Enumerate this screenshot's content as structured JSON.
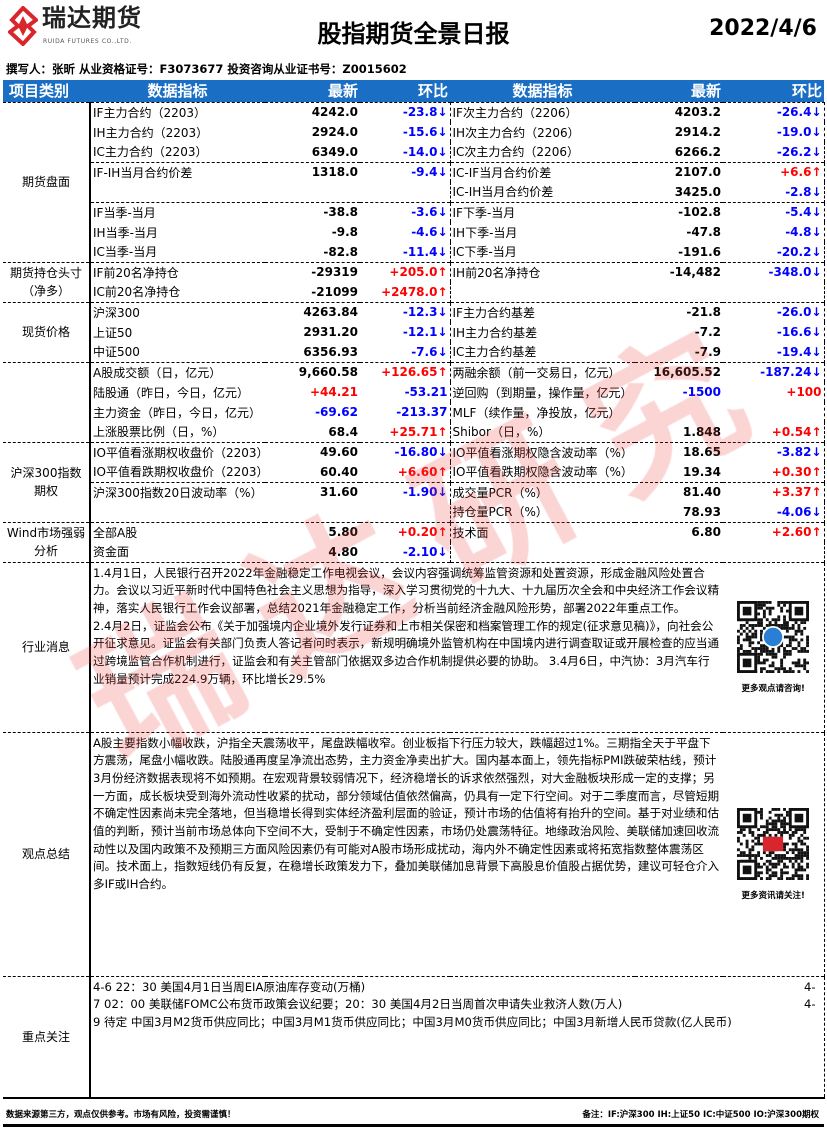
{
  "header": {
    "logo_cn": "瑞达期货",
    "logo_en": "RUIDA FUTURES CO.,LTD.",
    "title": "股指期货全景日报",
    "date": "2022/4/6",
    "author_line": "撰写人：张昕   从业资格证号：F3073677   投资咨询从业证书号：Z0015602"
  },
  "watermark": "瑞达研究",
  "columns": [
    "项目类别",
    "数据指标",
    "最新",
    "环比",
    "数据指标",
    "最新",
    "环比"
  ],
  "sections": [
    {
      "category": "期货盘面",
      "rows": [
        {
          "cells": [
            [
              "IF主力合约（2203）",
              "black"
            ],
            [
              "4242.0",
              "black"
            ],
            [
              "-23.8↓",
              "blue"
            ],
            [
              "IF次主力合约（2206）",
              "black"
            ],
            [
              "4203.2",
              "black"
            ],
            [
              "-26.4↓",
              "blue"
            ]
          ]
        },
        {
          "cells": [
            [
              "IH主力合约（2203）",
              "black"
            ],
            [
              "2924.0",
              "black"
            ],
            [
              "-15.6↓",
              "blue"
            ],
            [
              "IH次主力合约（2206）",
              "black"
            ],
            [
              "2914.2",
              "black"
            ],
            [
              "-19.0↓",
              "blue"
            ]
          ]
        },
        {
          "cells": [
            [
              "IC主力合约（2203）",
              "black"
            ],
            [
              "6349.0",
              "black"
            ],
            [
              "-14.0↓",
              "blue"
            ],
            [
              "IC次主力合约（2206）",
              "black"
            ],
            [
              "6266.2",
              "black"
            ],
            [
              "-26.2↓",
              "blue"
            ]
          ]
        },
        {
          "sep": true,
          "cells": [
            [
              "IF-IH当月合约价差",
              "black"
            ],
            [
              "1318.0",
              "black"
            ],
            [
              "-9.4↓",
              "blue"
            ],
            [
              "IC-IF当月合约价差",
              "black"
            ],
            [
              "2107.0",
              "black"
            ],
            [
              "+6.6↑",
              "red"
            ]
          ]
        },
        {
          "cells": [
            [
              "",
              "black"
            ],
            [
              "",
              "black"
            ],
            [
              "",
              "black"
            ],
            [
              "IC-IH当月合约价差",
              "black"
            ],
            [
              "3425.0",
              "black"
            ],
            [
              "-2.8↓",
              "blue"
            ]
          ]
        },
        {
          "sep": true,
          "cells": [
            [
              "IF当季-当月",
              "black"
            ],
            [
              "-38.8",
              "black"
            ],
            [
              "-3.6↓",
              "blue"
            ],
            [
              "IF下季-当月",
              "black"
            ],
            [
              "-102.8",
              "black"
            ],
            [
              "-5.4↓",
              "blue"
            ]
          ]
        },
        {
          "cells": [
            [
              "IH当季-当月",
              "black"
            ],
            [
              "-9.8",
              "black"
            ],
            [
              "-4.6↓",
              "blue"
            ],
            [
              "IH下季-当月",
              "black"
            ],
            [
              "-47.8",
              "black"
            ],
            [
              "-4.8↓",
              "blue"
            ]
          ]
        },
        {
          "cells": [
            [
              "IC当季-当月",
              "black"
            ],
            [
              "-82.8",
              "black"
            ],
            [
              "-11.4↓",
              "blue"
            ],
            [
              "IC下季-当月",
              "black"
            ],
            [
              "-191.6",
              "black"
            ],
            [
              "-20.2↓",
              "blue"
            ]
          ]
        }
      ]
    },
    {
      "category": "期货持仓头寸（净多）",
      "rows": [
        {
          "cells": [
            [
              "IF前20名净持仓",
              "black"
            ],
            [
              "-29319",
              "black"
            ],
            [
              "+205.0↑",
              "red"
            ],
            [
              "IH前20名净持仓",
              "black"
            ],
            [
              "-14,482",
              "black"
            ],
            [
              "-348.0↓",
              "blue"
            ]
          ]
        },
        {
          "cells": [
            [
              "IC前20名净持仓",
              "black"
            ],
            [
              "-21099",
              "black"
            ],
            [
              "+2478.0↑",
              "red"
            ],
            [
              "",
              "black"
            ],
            [
              "",
              "black"
            ],
            [
              "",
              "black"
            ]
          ]
        }
      ]
    },
    {
      "category": "现货价格",
      "rows": [
        {
          "cells": [
            [
              "沪深300",
              "black"
            ],
            [
              "4263.84",
              "black"
            ],
            [
              "-12.3↓",
              "blue"
            ],
            [
              "IF主力合约基差",
              "black"
            ],
            [
              "-21.8",
              "black"
            ],
            [
              "-26.0↓",
              "blue"
            ]
          ]
        },
        {
          "cells": [
            [
              "上证50",
              "black"
            ],
            [
              "2931.20",
              "black"
            ],
            [
              "-12.1↓",
              "blue"
            ],
            [
              "IH主力合约基差",
              "black"
            ],
            [
              "-7.2",
              "black"
            ],
            [
              "-16.6↓",
              "blue"
            ]
          ]
        },
        {
          "cells": [
            [
              "中证500",
              "black"
            ],
            [
              "6356.93",
              "black"
            ],
            [
              "-7.6↓",
              "blue"
            ],
            [
              "IC主力合约基差",
              "black"
            ],
            [
              "-7.9",
              "black"
            ],
            [
              "-19.4↓",
              "blue"
            ]
          ]
        }
      ]
    },
    {
      "category": "",
      "rows": [
        {
          "cells": [
            [
              "A股成交额（日，亿元）",
              "black"
            ],
            [
              "9,660.58",
              "black"
            ],
            [
              "+126.65↑",
              "red"
            ],
            [
              "两融余额（前一交易日，亿元）",
              "black"
            ],
            [
              "16,605.52",
              "black"
            ],
            [
              "-187.24↓",
              "blue"
            ]
          ]
        },
        {
          "cells": [
            [
              "陆股通（昨日，今日，亿元）",
              "black"
            ],
            [
              "+44.21",
              "red"
            ],
            [
              "-53.21",
              "blue"
            ],
            [
              "逆回购（到期量，操作量，亿元）",
              "black"
            ],
            [
              "-1500",
              "blue"
            ],
            [
              "+100",
              "red"
            ]
          ]
        },
        {
          "cells": [
            [
              "主力资金（昨日，今日，亿元）",
              "black"
            ],
            [
              "-69.62",
              "blue"
            ],
            [
              "-213.37",
              "blue"
            ],
            [
              "MLF（续作量，净投放，亿元）",
              "black"
            ],
            [
              "",
              "black"
            ],
            [
              "",
              "black"
            ]
          ]
        },
        {
          "cells": [
            [
              "上涨股票比例（日，%）",
              "black"
            ],
            [
              "68.4",
              "black"
            ],
            [
              "+25.71↑",
              "red"
            ],
            [
              "Shibor（日，%）",
              "black"
            ],
            [
              "1.848",
              "black"
            ],
            [
              "+0.54↑",
              "red"
            ]
          ]
        }
      ]
    },
    {
      "category": "沪深300指数期权",
      "rows": [
        {
          "cells": [
            [
              "IO平值看涨期权收盘价（2203）",
              "black"
            ],
            [
              "49.60",
              "black"
            ],
            [
              "-16.80↓",
              "blue"
            ],
            [
              "IO平值看涨期权隐含波动率（%）",
              "black"
            ],
            [
              "18.65",
              "black"
            ],
            [
              "-3.82↓",
              "blue"
            ]
          ]
        },
        {
          "cells": [
            [
              "IO平值看跌期权收盘价（2203）",
              "black"
            ],
            [
              "60.40",
              "black"
            ],
            [
              "+6.60↑",
              "red"
            ],
            [
              "IO平值看跌期权隐含波动率（%）",
              "black"
            ],
            [
              "19.34",
              "black"
            ],
            [
              "+0.30↑",
              "red"
            ]
          ]
        },
        {
          "sep": true,
          "cells": [
            [
              "沪深300指数20日波动率（%）",
              "black"
            ],
            [
              "31.60",
              "black"
            ],
            [
              "-1.90↓",
              "blue"
            ],
            [
              "成交量PCR（%）",
              "black"
            ],
            [
              "81.40",
              "black"
            ],
            [
              "+3.37↑",
              "red"
            ]
          ]
        },
        {
          "cells": [
            [
              "",
              "black"
            ],
            [
              "",
              "black"
            ],
            [
              "",
              "black"
            ],
            [
              "持仓量PCR（%）",
              "black"
            ],
            [
              "78.93",
              "black"
            ],
            [
              "-4.06↓",
              "blue"
            ]
          ]
        }
      ]
    },
    {
      "category": "Wind市场强弱分析",
      "rows": [
        {
          "cells": [
            [
              "全部A股",
              "black"
            ],
            [
              "5.80",
              "black"
            ],
            [
              "+0.20↑",
              "red"
            ],
            [
              "技术面",
              "black"
            ],
            [
              "6.80",
              "black"
            ],
            [
              "+2.60↑",
              "red"
            ]
          ]
        },
        {
          "cells": [
            [
              "资金面",
              "black"
            ],
            [
              "4.80",
              "black"
            ],
            [
              "-2.10↓",
              "blue"
            ],
            [
              "",
              "black"
            ],
            [
              "",
              "black"
            ],
            [
              "",
              "black"
            ]
          ]
        }
      ]
    }
  ],
  "news": {
    "label": "行业消息",
    "text": "1.4月1日，人民银行召开2022年金融稳定工作电视会议，会议内容强调统筹监管资源和处置资源，形成金融风险处置合力。会议以习近平新时代中国特色社会主义思想为指导，深入学习贯彻党的十九大、十九届历次全会和中央经济工作会议精神，落实人民银行工作会议部署，总结2021年金融稳定工作，分析当前经济金融风险形势，部署2022年重点工作。　　　　　2.4月2日，证监会公布《关于加强境内企业境外发行证券和上市相关保密和档案管理工作的规定(征求意见稿)》，向社会公开征求意见。证监会有关部门负责人答记者问时表示，新规明确境外监管机构在中国境内进行调查取证或开展检查的应当通过跨境监管合作机制进行，证监会和有关主管部门依据双多边合作机制提供必要的协助。\n3.4月6日，中汽协：3月汽车行业销量预计完成224.9万辆，环比增长29.5%",
    "qr_caption": "更多观点请咨询!"
  },
  "view": {
    "label": "观点总结",
    "text": "A股主要指数小幅收跌，沪指全天震荡收平，尾盘跌幅收窄。创业板指下行压力较大，跌幅超过1%。三期指全天于平盘下方震荡，尾盘小幅收跌。陆股通再度呈净流出态势，主力资金净卖出扩大。国内基本面上，领先指标PMI跌破荣枯线，预计3月份经济数据表现将不如预期。在宏观背景较弱情况下，经济稳增长的诉求依然强烈，对大金融板块形成一定的支撑；另一方面，成长板块受到海外流动性收紧的扰动，部分领域估值依然偏高，仍具有一定下行空间。对于二季度而言，尽管短期不确定性因素尚未完全落地，但当稳增长得到实体经济盈利层面的验证，预计市场的估值将有抬升的空间。基于对业绩和估值的判断，预计当前市场总体向下空间不大，受制于不确定性因素，市场仍处震荡特征。地缘政治风险、美联储加速回收流动性以及国内政策不及预期三方面风险因素仍有可能对A股市场形成扰动，海内外不确定性因素或将拓宽指数整体震荡区间。技术面上，指数短线仍有反复，在稳增长政策发力下，叠加美联储加息背景下高股息价值股占据优势，建议可轻仓介入多IF或IH合约。",
    "qr_caption": "更多资讯请关注!"
  },
  "focus": {
    "label": "重点关注",
    "lines": [
      {
        "text": "4-6 22：30 美国4月1日当周EIA原油库存变动(万桶)",
        "tail": "4-"
      },
      {
        "text": "7 02：00 美联储FOMC公布货币政策会议纪要；20：30 美国4月2日当周首次申请失业救济人数(万人)",
        "tail": "4-"
      },
      {
        "text": "9 待定 中国3月M2货币供应同比；中国3月M1货币供应同比；中国3月M0货币供应同比；中国3月新增人民币贷款(亿人民币)",
        "tail": ""
      }
    ]
  },
  "footer": {
    "disclaimer": "数据来源第三方，观点仅供参考。市场有风险，投资需谨慎！",
    "note": "备注：IF:沪深300  IH:上证50  IC:中证500  IO:沪深300期权"
  },
  "colors": {
    "header_blue": "#1a6fc4",
    "up": "#ff0000",
    "down": "#0000ff",
    "brand_red": "#d9262c"
  }
}
